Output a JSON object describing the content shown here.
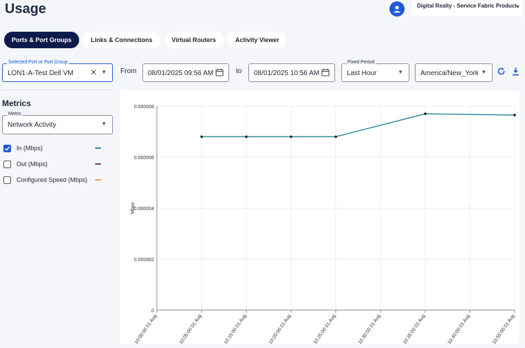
{
  "page": {
    "title": "Usage"
  },
  "header": {
    "org_name": "Digital Realty - Service Fabric Product"
  },
  "tabs": [
    {
      "label": "Ports & Port Groups",
      "active": true
    },
    {
      "label": "Links & Connections",
      "active": false
    },
    {
      "label": "Virtual Routers",
      "active": false
    },
    {
      "label": "Activity Viewer",
      "active": false
    }
  ],
  "filters": {
    "port": {
      "label": "Selected Port or Port Group",
      "value": "LON1-A-Test Dell VM"
    },
    "from_label": "From",
    "from_value": "08/01/2025 09:56 AM",
    "to_label": "to",
    "to_value": "08/01/2025 10:56 AM",
    "period": {
      "label": "Fixed Period",
      "value": "Last Hour"
    },
    "timezone": {
      "value": "America/New_York"
    }
  },
  "metrics": {
    "heading": "Metrics",
    "select": {
      "label": "Metric",
      "value": "Network Activity"
    },
    "series_toggles": [
      {
        "label": "In (Mbps)",
        "checked": true,
        "color": "#2e8b9a"
      },
      {
        "label": "Out (Mbps)",
        "checked": false,
        "color": "#6b3f6e"
      },
      {
        "label": "Configured Speed (Mbps)",
        "checked": false,
        "color": "#f0a050"
      }
    ]
  },
  "chart_data": {
    "type": "line",
    "ylabel": "Mbps",
    "ylim": [
      0,
      8e-06
    ],
    "y_ticks": [
      "0",
      "0.000002",
      "0.000004",
      "0.000006",
      "0.000008"
    ],
    "x_ticks": [
      "10:00:00 01 Aug",
      "10:05:00 01 Aug",
      "10:15:00 01 Aug",
      "10:20:00 01 Aug",
      "10:25:00 01 Aug",
      "10:30:00 01 Aug",
      "10:35:00 01 Aug",
      "10:40:00 01 Aug",
      "10:55:00 01 Aug"
    ],
    "grid": true,
    "series": [
      {
        "name": "In (Mbps)",
        "color": "#2e8b9a",
        "points": [
          {
            "x": "10:05:00 01 Aug",
            "y": 6.8e-06
          },
          {
            "x": "10:15:00 01 Aug",
            "y": 6.8e-06
          },
          {
            "x": "10:20:00 01 Aug",
            "y": 6.8e-06
          },
          {
            "x": "10:25:00 01 Aug",
            "y": 6.8e-06
          },
          {
            "x": "10:35:00 01 Aug",
            "y": 7.7e-06
          },
          {
            "x": "10:55:00 01 Aug",
            "y": 7.65e-06
          }
        ]
      }
    ]
  }
}
